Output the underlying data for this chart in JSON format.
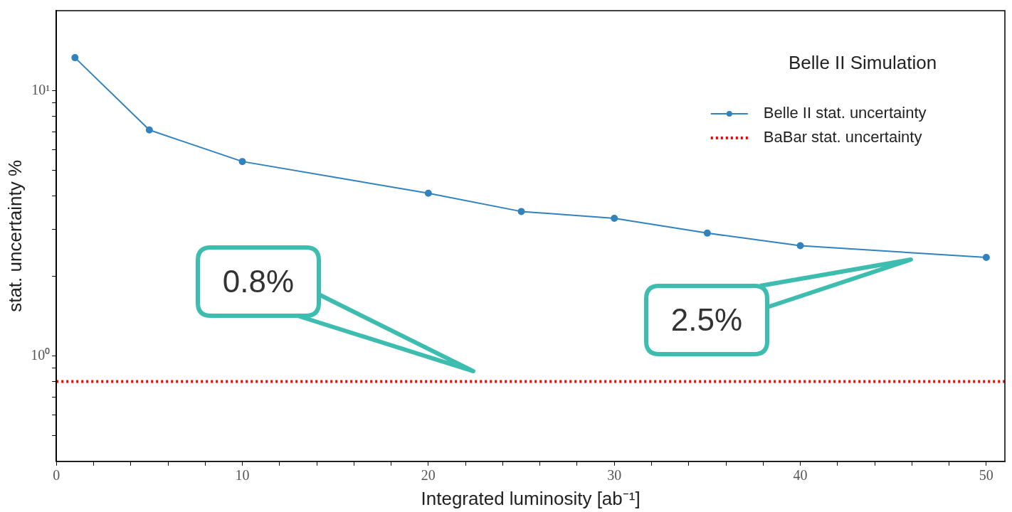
{
  "chart_data": {
    "type": "line",
    "xlabel": "Integrated luminosity [ab⁻¹]",
    "ylabel": "stat. uncertainty %",
    "log": "y",
    "grid": false,
    "legend": "top right",
    "xlim": [
      0,
      51
    ],
    "xticks": [
      0,
      {
        "value": 2,
        "label": null
      },
      {
        "value": 4,
        "label": null
      },
      {
        "value": 6,
        "label": null
      },
      {
        "value": 8,
        "label": null
      },
      10,
      {
        "value": 12,
        "label": null
      },
      {
        "value": 14,
        "label": null
      },
      {
        "value": 16,
        "label": null
      },
      {
        "value": 18,
        "label": null
      },
      20,
      {
        "value": 22,
        "label": null
      },
      {
        "value": 24,
        "label": null
      },
      {
        "value": 26,
        "label": null
      },
      {
        "value": 28,
        "label": null
      },
      30,
      {
        "value": 32,
        "label": null
      },
      {
        "value": 34,
        "label": null
      },
      {
        "value": 36,
        "label": null
      },
      {
        "value": 38,
        "label": null
      },
      40,
      {
        "value": 42,
        "label": null
      },
      {
        "value": 44,
        "label": null
      },
      {
        "value": 46,
        "label": null
      },
      {
        "value": 48,
        "label": null
      },
      50
    ],
    "ylim": [
      0.4,
      20
    ],
    "yticks": [
      {
        "value": 0.5,
        "label": null
      },
      {
        "value": 0.6,
        "label": null
      },
      {
        "value": 0.7,
        "label": null
      },
      {
        "value": 0.8,
        "label": null
      },
      {
        "value": 0.9,
        "label": null
      },
      {
        "value": 1,
        "label": "10⁰"
      },
      {
        "value": 2,
        "label": null
      },
      {
        "value": 3,
        "label": null
      },
      {
        "value": 4,
        "label": null
      },
      {
        "value": 5,
        "label": null
      },
      {
        "value": 6,
        "label": null
      },
      {
        "value": 7,
        "label": null
      },
      {
        "value": 8,
        "label": null
      },
      {
        "value": 9,
        "label": null
      },
      {
        "value": 10,
        "label": "10¹"
      }
    ],
    "series": [
      {
        "name": "Belle II stat. uncertainty",
        "color": "#3182bd",
        "x": [
          1,
          5,
          10,
          20,
          25,
          30,
          35,
          40,
          50
        ],
        "values": [
          13.3,
          7.1,
          5.4,
          4.1,
          3.5,
          3.3,
          2.9,
          2.6,
          2.35
        ],
        "marker": "circle",
        "line_style": "solid"
      },
      {
        "name": "BaBar stat. uncertainty",
        "color": "#ff0000",
        "x": [
          0,
          51
        ],
        "values": [
          0.8,
          0.8
        ],
        "marker": "none",
        "line_style": "dotted"
      }
    ],
    "annotations": [
      "Belle II Simulation",
      "0.8%",
      "2.5%"
    ]
  }
}
